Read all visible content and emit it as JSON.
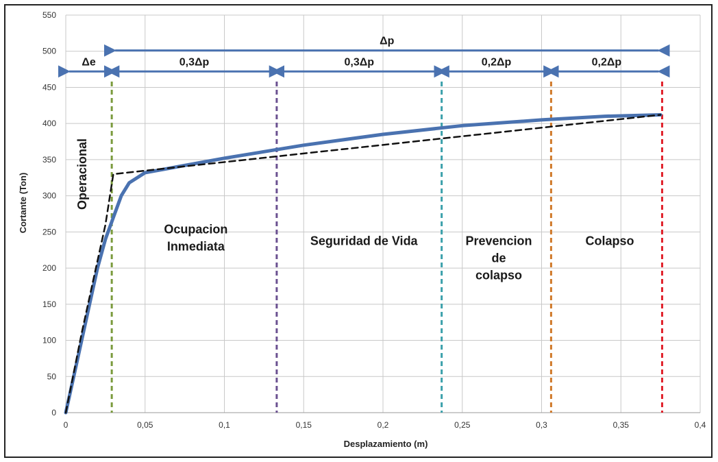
{
  "chart_data": {
    "type": "line",
    "xlabel": "Desplazamiento (m)",
    "ylabel": "Cortante (Ton)",
    "xlim": [
      0,
      0.4
    ],
    "ylim": [
      0,
      550
    ],
    "x_ticks": [
      0,
      0.05,
      0.1,
      0.15,
      0.2,
      0.25,
      0.3,
      0.35,
      0.4
    ],
    "x_tick_labels": [
      "0",
      "0,05",
      "0,1",
      "0,15",
      "0,2",
      "0,25",
      "0,3",
      "0,35",
      "0,4"
    ],
    "y_ticks": [
      0,
      50,
      100,
      150,
      200,
      250,
      300,
      350,
      400,
      450,
      500,
      550
    ],
    "y_tick_labels": [
      "0",
      "50",
      "100",
      "150",
      "200",
      "250",
      "300",
      "350",
      "400",
      "450",
      "500",
      "550"
    ],
    "grid": true,
    "series": [
      {
        "style": "solid",
        "color": "#4a72b0",
        "x": [
          0,
          0.005,
          0.01,
          0.015,
          0.02,
          0.025,
          0.03,
          0.035,
          0.04,
          0.05,
          0.1,
          0.15,
          0.2,
          0.25,
          0.3,
          0.34,
          0.375
        ],
        "y": [
          0,
          50,
          100,
          150,
          200,
          240,
          270,
          300,
          318,
          332,
          352,
          370,
          385,
          397,
          405,
          410,
          412
        ]
      },
      {
        "style": "dashed",
        "color": "#111111",
        "x": [
          0,
          0.01,
          0.02,
          0.025,
          0.03,
          0.375
        ],
        "y": [
          0,
          110,
          210,
          260,
          330,
          412
        ]
      }
    ],
    "vlines": [
      {
        "x": 0.029,
        "color": "#7a9a3c"
      },
      {
        "x": 0.133,
        "color": "#6a5090"
      },
      {
        "x": 0.237,
        "color": "#3aa0aa"
      },
      {
        "x": 0.306,
        "color": "#d07a2a"
      },
      {
        "x": 0.376,
        "color": "#e0202a"
      }
    ],
    "segments": [
      {
        "label": "Δp",
        "x1": 0.029,
        "x2": 0.376,
        "y": 501
      },
      {
        "label": "Δe",
        "x1": 0.0,
        "x2": 0.029,
        "y": 472
      },
      {
        "label": "0,3Δp",
        "x1": 0.029,
        "x2": 0.133,
        "y": 472
      },
      {
        "label": "0,3Δp",
        "x1": 0.133,
        "x2": 0.237,
        "y": 472
      },
      {
        "label": "0,2Δp",
        "x1": 0.237,
        "x2": 0.306,
        "y": 472
      },
      {
        "label": "0,2Δp",
        "x1": 0.306,
        "x2": 0.376,
        "y": 472
      }
    ],
    "zones": [
      {
        "lines": [
          "Operacional"
        ],
        "x": 0.013,
        "y": 330,
        "rotate": -90
      },
      {
        "lines": [
          "Ocupacion",
          "Inmediata"
        ],
        "x": 0.082,
        "y": 248
      },
      {
        "lines": [
          "Seguridad de Vida"
        ],
        "x": 0.188,
        "y": 232
      },
      {
        "lines": [
          "Prevencion",
          "de",
          "colapso"
        ],
        "x": 0.273,
        "y": 232
      },
      {
        "lines": [
          "Colapso"
        ],
        "x": 0.343,
        "y": 232
      }
    ],
    "colors": {
      "curve": "#4a72b0",
      "segment_arrow": "#4a72b0",
      "grid": "#c8c8c8"
    }
  }
}
